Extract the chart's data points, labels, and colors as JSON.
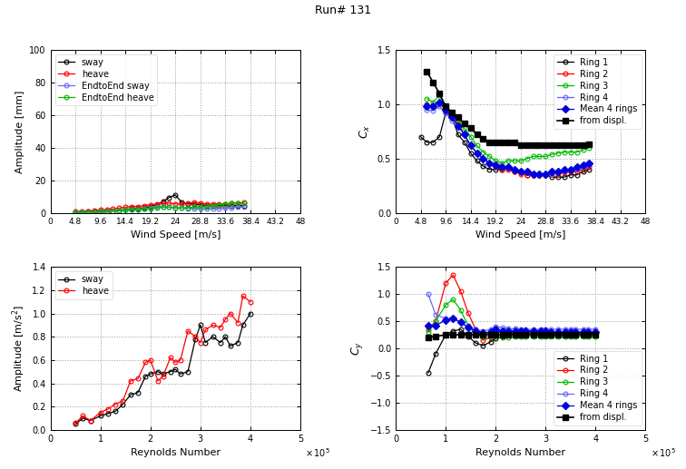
{
  "title": "Run# 131",
  "wind_speed_x": [
    4.8,
    6.0,
    7.2,
    8.4,
    9.6,
    10.8,
    12.0,
    13.2,
    14.4,
    15.6,
    16.8,
    18.0,
    19.2,
    20.4,
    21.6,
    22.8,
    24.0,
    25.2,
    26.4,
    27.6,
    28.8,
    30.0,
    31.2,
    32.4,
    33.6,
    34.8,
    36.0,
    37.2,
    38.4
  ],
  "reynolds_x": [
    50000,
    65000,
    80000,
    100000,
    115000,
    130000,
    145000,
    160000,
    175000,
    190000,
    200000,
    215000,
    225000,
    240000,
    250000,
    260000,
    275000,
    290000,
    300000,
    310000,
    325000,
    340000,
    350000,
    360000,
    375000,
    385000,
    400000
  ],
  "tl_sway": [
    0.5,
    0.6,
    0.8,
    0.8,
    1.0,
    1.0,
    1.2,
    1.5,
    1.8,
    2.5,
    2.5,
    3.0,
    4.0,
    5.0,
    7.0,
    9.5,
    11.0,
    6.5,
    5.5,
    5.5,
    5.0,
    4.5,
    4.5,
    4.5,
    4.5,
    4.5,
    4.5,
    4.5,
    null
  ],
  "tl_heave": [
    0.8,
    1.0,
    1.2,
    1.5,
    1.8,
    2.0,
    2.5,
    3.0,
    3.5,
    4.0,
    4.0,
    4.5,
    5.0,
    5.5,
    6.0,
    6.0,
    5.5,
    5.5,
    6.0,
    6.5,
    6.0,
    5.5,
    5.5,
    5.5,
    5.5,
    6.0,
    6.0,
    6.5,
    null
  ],
  "tl_e2e_sway": [
    0.3,
    0.4,
    0.5,
    0.6,
    0.8,
    1.0,
    1.2,
    1.5,
    1.8,
    2.0,
    2.2,
    2.5,
    3.0,
    3.5,
    3.8,
    3.5,
    3.0,
    3.0,
    2.8,
    2.8,
    2.5,
    2.5,
    2.5,
    2.8,
    3.0,
    3.2,
    3.5,
    3.8,
    null
  ],
  "tl_e2e_heave": [
    0.2,
    0.3,
    0.4,
    0.6,
    0.8,
    1.0,
    1.2,
    1.5,
    1.8,
    2.0,
    2.2,
    2.5,
    2.8,
    3.2,
    3.5,
    3.5,
    3.2,
    3.0,
    3.2,
    3.5,
    3.8,
    4.0,
    4.5,
    5.0,
    5.5,
    5.8,
    5.8,
    6.0,
    null
  ],
  "tr_ring1": [
    0.7,
    0.65,
    0.65,
    0.7,
    0.92,
    0.88,
    0.72,
    0.65,
    0.55,
    0.48,
    0.43,
    0.4,
    0.4,
    0.4,
    0.42,
    0.38,
    0.38,
    0.35,
    0.35,
    0.35,
    0.35,
    0.33,
    0.33,
    0.33,
    0.35,
    0.35,
    0.38,
    0.4,
    null
  ],
  "tr_ring2": [
    null,
    1.0,
    0.98,
    1.02,
    0.95,
    0.88,
    0.82,
    0.72,
    0.62,
    0.55,
    0.5,
    0.46,
    0.42,
    0.4,
    0.4,
    0.38,
    0.36,
    0.35,
    0.35,
    0.35,
    0.35,
    0.36,
    0.36,
    0.37,
    0.38,
    0.38,
    0.4,
    0.42,
    null
  ],
  "tr_ring3": [
    null,
    1.05,
    1.02,
    1.08,
    0.98,
    0.92,
    0.86,
    0.78,
    0.7,
    0.62,
    0.56,
    0.52,
    0.48,
    0.46,
    0.48,
    0.48,
    0.48,
    0.5,
    0.52,
    0.52,
    0.52,
    0.54,
    0.55,
    0.56,
    0.56,
    0.56,
    0.58,
    0.6,
    null
  ],
  "tr_ring4": [
    null,
    0.95,
    0.94,
    0.98,
    0.92,
    0.85,
    0.8,
    0.72,
    0.62,
    0.56,
    0.5,
    0.46,
    0.44,
    0.42,
    0.42,
    0.4,
    0.38,
    0.38,
    0.36,
    0.36,
    0.36,
    0.36,
    0.38,
    0.38,
    0.4,
    0.4,
    0.42,
    0.44,
    null
  ],
  "tr_mean": [
    null,
    0.98,
    0.98,
    1.02,
    0.95,
    0.88,
    0.8,
    0.72,
    0.62,
    0.55,
    0.5,
    0.46,
    0.44,
    0.42,
    0.42,
    0.4,
    0.38,
    0.38,
    0.36,
    0.36,
    0.36,
    0.38,
    0.38,
    0.4,
    0.4,
    0.42,
    0.44,
    0.46,
    null
  ],
  "tr_displ": [
    null,
    1.3,
    1.2,
    1.1,
    0.98,
    0.92,
    0.88,
    0.82,
    0.78,
    0.72,
    0.68,
    0.65,
    0.65,
    0.65,
    0.65,
    0.65,
    0.62,
    0.62,
    0.62,
    0.62,
    0.62,
    0.62,
    0.62,
    0.62,
    0.62,
    0.62,
    0.62,
    0.63,
    null
  ],
  "bl_sway": [
    0.05,
    0.1,
    0.08,
    0.12,
    0.14,
    0.16,
    0.22,
    0.3,
    0.32,
    0.46,
    0.48,
    0.5,
    0.48,
    0.5,
    0.52,
    0.48,
    0.5,
    0.78,
    0.9,
    0.75,
    0.8,
    0.75,
    0.8,
    0.72,
    0.75,
    0.9,
    1.0,
    null
  ],
  "bl_heave": [
    0.06,
    0.12,
    0.08,
    0.15,
    0.18,
    0.22,
    0.25,
    0.42,
    0.44,
    0.58,
    0.6,
    0.42,
    0.46,
    0.62,
    0.58,
    0.6,
    0.85,
    0.8,
    0.75,
    0.86,
    0.9,
    0.88,
    0.95,
    1.0,
    0.92,
    1.15,
    1.1,
    null
  ],
  "br_ring1": [
    null,
    -0.45,
    -0.1,
    0.25,
    0.32,
    0.35,
    0.22,
    0.1,
    0.05,
    0.12,
    0.18,
    0.22,
    0.28,
    0.25,
    0.28,
    0.28,
    0.28,
    0.28,
    0.28,
    0.28,
    0.28,
    0.28,
    0.28,
    0.28,
    0.28,
    0.28,
    0.28,
    null
  ],
  "br_ring2": [
    null,
    0.35,
    0.5,
    1.2,
    1.35,
    1.05,
    0.65,
    0.35,
    0.15,
    0.2,
    0.28,
    0.32,
    0.3,
    0.28,
    0.28,
    0.3,
    0.3,
    0.3,
    0.3,
    0.28,
    0.28,
    0.28,
    0.28,
    0.28,
    0.3,
    0.3,
    0.3,
    null
  ],
  "br_ring3": [
    null,
    0.3,
    0.5,
    0.8,
    0.9,
    0.7,
    0.42,
    0.28,
    0.2,
    0.22,
    0.22,
    0.2,
    0.2,
    0.22,
    0.22,
    0.22,
    0.22,
    0.22,
    0.22,
    0.22,
    0.22,
    0.22,
    0.22,
    0.22,
    0.22,
    0.22,
    0.22,
    null
  ],
  "br_ring4": [
    null,
    1.0,
    0.62,
    0.55,
    0.55,
    0.48,
    0.4,
    0.35,
    0.32,
    0.35,
    0.4,
    0.38,
    0.36,
    0.36,
    0.35,
    0.35,
    0.35,
    0.35,
    0.35,
    0.35,
    0.35,
    0.35,
    0.35,
    0.35,
    0.35,
    0.35,
    0.35,
    null
  ],
  "br_mean": [
    null,
    0.42,
    0.42,
    0.52,
    0.55,
    0.48,
    0.38,
    0.32,
    0.28,
    0.3,
    0.35,
    0.32,
    0.32,
    0.32,
    0.32,
    0.32,
    0.32,
    0.32,
    0.32,
    0.3,
    0.3,
    0.3,
    0.3,
    0.3,
    0.3,
    0.3,
    0.3,
    null
  ],
  "br_displ": [
    null,
    0.2,
    0.22,
    0.25,
    0.25,
    0.25,
    0.25,
    0.25,
    0.25,
    0.25,
    0.25,
    0.25,
    0.25,
    0.25,
    0.25,
    0.25,
    0.25,
    0.25,
    0.25,
    0.25,
    0.25,
    0.25,
    0.25,
    0.25,
    0.25,
    0.25,
    0.25,
    null
  ],
  "c_black": "#000000",
  "c_red": "#FF0000",
  "c_green": "#00BB00",
  "c_blue_open": "#6666FF",
  "c_blue_filled": "#0000DD",
  "c_white": "#FFFFFF"
}
